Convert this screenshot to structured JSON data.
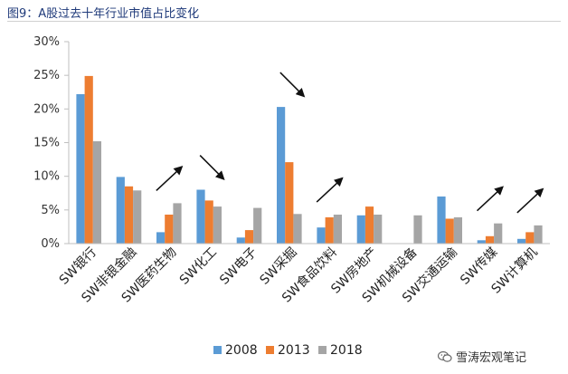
{
  "header": {
    "title": "图9：A股过去十年行业市值占比变化"
  },
  "watermark": {
    "text": "雪涛宏观笔记",
    "icon": "wechat-icon"
  },
  "chart_data": {
    "type": "bar",
    "categories": [
      "SW银行",
      "SW非银金融",
      "SW医药生物",
      "SW化工",
      "SW电子",
      "SW采掘",
      "SW食品饮料",
      "SW房地产",
      "SW机械设备",
      "SW交通运输",
      "SW传媒",
      "SW计算机"
    ],
    "series": [
      {
        "name": "2008",
        "color": "#5b9bd5",
        "values": [
          22.2,
          9.9,
          1.7,
          8.0,
          0.9,
          20.3,
          2.4,
          4.2,
          0,
          7.0,
          0.5,
          0.7
        ]
      },
      {
        "name": "2013",
        "color": "#ed7d31",
        "values": [
          24.9,
          8.5,
          4.3,
          6.4,
          2.0,
          12.1,
          3.9,
          5.5,
          0,
          3.7,
          1.1,
          1.7
        ]
      },
      {
        "name": "2018",
        "color": "#a5a5a5",
        "values": [
          15.2,
          7.9,
          6.0,
          5.5,
          5.3,
          4.4,
          4.3,
          4.3,
          4.2,
          3.9,
          3.0,
          2.7
        ]
      }
    ],
    "ylim": [
      0,
      30
    ],
    "yticks": [
      "0%",
      "5%",
      "10%",
      "15%",
      "20%",
      "25%",
      "30%"
    ],
    "legend_position": "bottom",
    "grid": false,
    "annotations": [
      {
        "category": "SW医药生物",
        "direction": "up"
      },
      {
        "category": "SW化工",
        "direction": "down"
      },
      {
        "category": "SW采掘",
        "direction": "down"
      },
      {
        "category": "SW食品饮料",
        "direction": "up"
      },
      {
        "category": "SW传媒",
        "direction": "up"
      },
      {
        "category": "SW计算机",
        "direction": "up"
      }
    ]
  }
}
